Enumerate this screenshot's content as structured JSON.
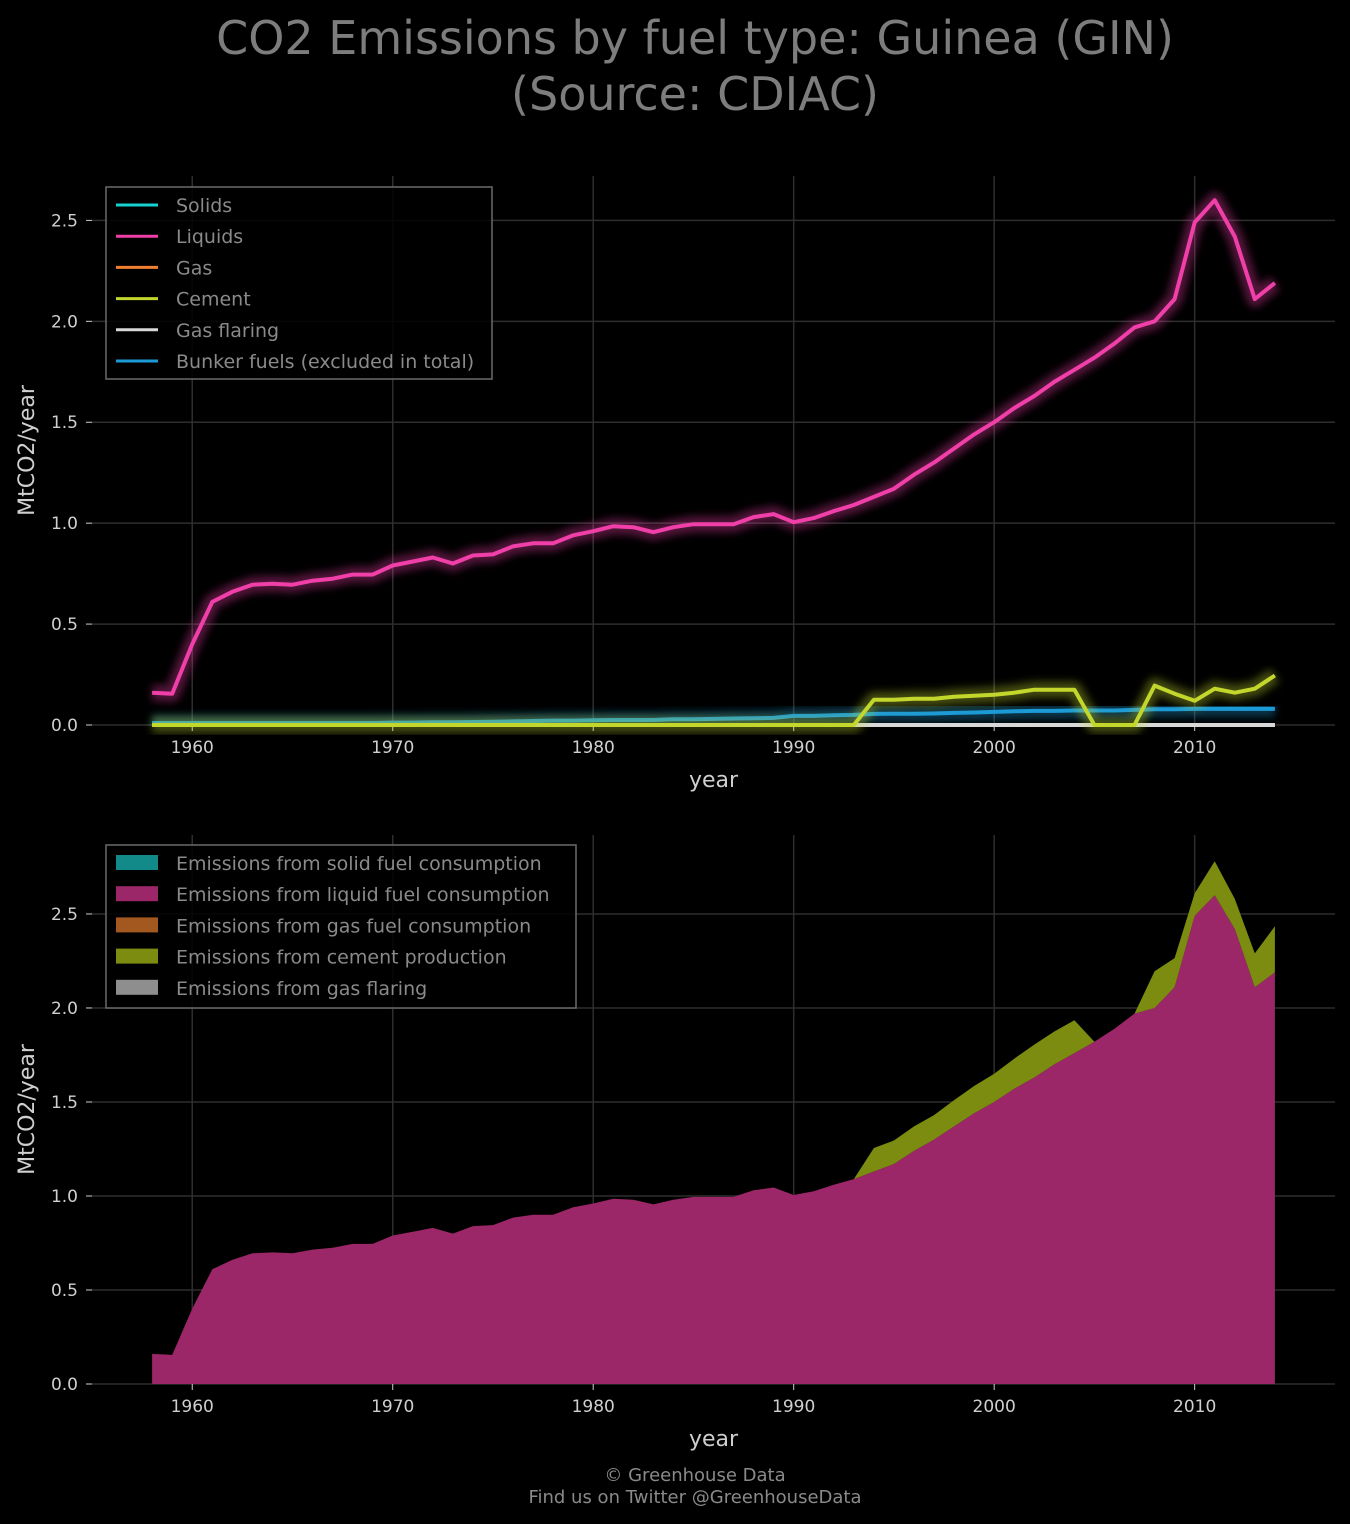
{
  "title": {
    "line1": "CO2 Emissions by fuel type: Guinea (GIN)",
    "line2": "(Source: CDIAC)"
  },
  "footer": {
    "line1": "© Greenhouse Data",
    "line2": "Find us on Twitter @GreenhouseData"
  },
  "chart_data": [
    {
      "type": "line",
      "xlabel": "year",
      "ylabel": "MtCO2/year",
      "xlim": [
        1955,
        2017
      ],
      "ylim": [
        0,
        2.72
      ],
      "xticks": [
        1960,
        1970,
        1980,
        1990,
        2000,
        2010
      ],
      "yticks": [
        0.0,
        0.5,
        1.0,
        1.5,
        2.0,
        2.5
      ],
      "grid": true,
      "legend_position": "top-left",
      "x": [
        1958,
        1959,
        1960,
        1961,
        1962,
        1963,
        1964,
        1965,
        1966,
        1967,
        1968,
        1969,
        1970,
        1971,
        1972,
        1973,
        1974,
        1975,
        1976,
        1977,
        1978,
        1979,
        1980,
        1981,
        1982,
        1983,
        1984,
        1985,
        1986,
        1987,
        1988,
        1989,
        1990,
        1991,
        1992,
        1993,
        1994,
        1995,
        1996,
        1997,
        1998,
        1999,
        2000,
        2001,
        2002,
        2003,
        2004,
        2005,
        2006,
        2007,
        2008,
        2009,
        2010,
        2011,
        2012,
        2013,
        2014
      ],
      "series": [
        {
          "name": "Solids",
          "color": "#17d0d0",
          "values": [
            0,
            0,
            0,
            0,
            0,
            0,
            0,
            0,
            0,
            0,
            0,
            0,
            0,
            0,
            0,
            0,
            0,
            0,
            0,
            0,
            0,
            0,
            0,
            0,
            0,
            0,
            0,
            0,
            0,
            0,
            0,
            0,
            0,
            0,
            0,
            0,
            0,
            0,
            0,
            0,
            0,
            0,
            0,
            0,
            0,
            0,
            0,
            0,
            0,
            0,
            0,
            0,
            0,
            0,
            0,
            0,
            0
          ]
        },
        {
          "name": "Liquids",
          "color": "#f03fa8",
          "values": [
            0.16,
            0.155,
            0.4,
            0.61,
            0.66,
            0.695,
            0.7,
            0.695,
            0.715,
            0.725,
            0.745,
            0.745,
            0.79,
            0.81,
            0.83,
            0.8,
            0.84,
            0.845,
            0.885,
            0.9,
            0.9,
            0.94,
            0.96,
            0.985,
            0.98,
            0.955,
            0.98,
            0.995,
            0.995,
            0.995,
            1.03,
            1.045,
            1.005,
            1.025,
            1.06,
            1.09,
            1.13,
            1.17,
            1.24,
            1.3,
            1.37,
            1.44,
            1.5,
            1.57,
            1.63,
            1.7,
            1.76,
            1.82,
            1.89,
            1.97,
            2.0,
            2.11,
            2.49,
            2.6,
            2.42,
            2.11,
            2.19
          ]
        },
        {
          "name": "Gas",
          "color": "#f07f2f",
          "values": [
            0,
            0,
            0,
            0,
            0,
            0,
            0,
            0,
            0,
            0,
            0,
            0,
            0,
            0,
            0,
            0,
            0,
            0,
            0,
            0,
            0,
            0,
            0,
            0,
            0,
            0,
            0,
            0,
            0,
            0,
            0,
            0,
            0,
            0,
            0,
            0,
            0,
            0,
            0,
            0,
            0,
            0,
            0,
            0,
            0,
            0,
            0,
            0,
            0,
            0,
            0,
            0,
            0,
            0,
            0,
            0,
            0
          ]
        },
        {
          "name": "Cement",
          "color": "#c2d62c",
          "values": [
            0,
            0,
            0,
            0,
            0,
            0,
            0,
            0,
            0,
            0,
            0,
            0,
            0,
            0,
            0,
            0,
            0,
            0,
            0,
            0,
            0,
            0,
            0,
            0,
            0,
            0,
            0,
            0,
            0,
            0,
            0,
            0,
            0,
            0,
            0,
            0,
            0.125,
            0.125,
            0.13,
            0.13,
            0.14,
            0.145,
            0.15,
            0.16,
            0.175,
            0.175,
            0.175,
            0,
            0,
            0,
            0.195,
            0.155,
            0.12,
            0.18,
            0.16,
            0.18,
            0.245
          ]
        },
        {
          "name": "Gas flaring",
          "color": "#d8d8d8",
          "values": [
            0,
            0,
            0,
            0,
            0,
            0,
            0,
            0,
            0,
            0,
            0,
            0,
            0,
            0,
            0,
            0,
            0,
            0,
            0,
            0,
            0,
            0,
            0,
            0,
            0,
            0,
            0,
            0,
            0,
            0,
            0,
            0,
            0,
            0,
            0,
            0,
            0,
            0,
            0,
            0,
            0,
            0,
            0,
            0,
            0,
            0,
            0,
            0,
            0,
            0,
            0,
            0,
            0,
            0,
            0,
            0,
            0
          ]
        },
        {
          "name": "Bunker fuels (excluded in total)",
          "color": "#1c9ad6",
          "values": [
            0.01,
            0.01,
            0.01,
            0.01,
            0.01,
            0.01,
            0.01,
            0.01,
            0.01,
            0.01,
            0.01,
            0.01,
            0.012,
            0.012,
            0.014,
            0.014,
            0.015,
            0.016,
            0.018,
            0.02,
            0.022,
            0.022,
            0.024,
            0.025,
            0.025,
            0.025,
            0.028,
            0.028,
            0.03,
            0.032,
            0.033,
            0.035,
            0.045,
            0.045,
            0.048,
            0.05,
            0.055,
            0.056,
            0.056,
            0.057,
            0.06,
            0.062,
            0.065,
            0.068,
            0.07,
            0.07,
            0.072,
            0.072,
            0.072,
            0.075,
            0.078,
            0.078,
            0.08,
            0.08,
            0.08,
            0.08,
            0.08
          ]
        }
      ]
    },
    {
      "type": "area",
      "stacked": true,
      "xlabel": "year",
      "ylabel": "MtCO2/year",
      "xlim": [
        1955,
        2017
      ],
      "ylim": [
        0,
        2.92
      ],
      "xticks": [
        1960,
        1970,
        1980,
        1990,
        2000,
        2010
      ],
      "yticks": [
        0.0,
        0.5,
        1.0,
        1.5,
        2.0,
        2.5
      ],
      "grid": true,
      "legend_position": "top-left",
      "x": [
        1958,
        1959,
        1960,
        1961,
        1962,
        1963,
        1964,
        1965,
        1966,
        1967,
        1968,
        1969,
        1970,
        1971,
        1972,
        1973,
        1974,
        1975,
        1976,
        1977,
        1978,
        1979,
        1980,
        1981,
        1982,
        1983,
        1984,
        1985,
        1986,
        1987,
        1988,
        1989,
        1990,
        1991,
        1992,
        1993,
        1994,
        1995,
        1996,
        1997,
        1998,
        1999,
        2000,
        2001,
        2002,
        2003,
        2004,
        2005,
        2006,
        2007,
        2008,
        2009,
        2010,
        2011,
        2012,
        2013,
        2014
      ],
      "series": [
        {
          "name": "Emissions from solid fuel consumption",
          "color": "#138a8a",
          "values": [
            0,
            0,
            0,
            0,
            0,
            0,
            0,
            0,
            0,
            0,
            0,
            0,
            0,
            0,
            0,
            0,
            0,
            0,
            0,
            0,
            0,
            0,
            0,
            0,
            0,
            0,
            0,
            0,
            0,
            0,
            0,
            0,
            0,
            0,
            0,
            0,
            0,
            0,
            0,
            0,
            0,
            0,
            0,
            0,
            0,
            0,
            0,
            0,
            0,
            0,
            0,
            0,
            0,
            0,
            0,
            0,
            0
          ]
        },
        {
          "name": "Emissions from liquid fuel consumption",
          "color": "#9c2768",
          "values": [
            0.16,
            0.155,
            0.4,
            0.61,
            0.66,
            0.695,
            0.7,
            0.695,
            0.715,
            0.725,
            0.745,
            0.745,
            0.79,
            0.81,
            0.83,
            0.8,
            0.84,
            0.845,
            0.885,
            0.9,
            0.9,
            0.94,
            0.96,
            0.985,
            0.98,
            0.955,
            0.98,
            0.995,
            0.995,
            0.995,
            1.03,
            1.045,
            1.005,
            1.025,
            1.06,
            1.09,
            1.13,
            1.17,
            1.24,
            1.3,
            1.37,
            1.44,
            1.5,
            1.57,
            1.63,
            1.7,
            1.76,
            1.82,
            1.89,
            1.97,
            2.0,
            2.11,
            2.49,
            2.6,
            2.42,
            2.11,
            2.19
          ]
        },
        {
          "name": "Emissions from gas fuel consumption",
          "color": "#a3581f",
          "values": [
            0,
            0,
            0,
            0,
            0,
            0,
            0,
            0,
            0,
            0,
            0,
            0,
            0,
            0,
            0,
            0,
            0,
            0,
            0,
            0,
            0,
            0,
            0,
            0,
            0,
            0,
            0,
            0,
            0,
            0,
            0,
            0,
            0,
            0,
            0,
            0,
            0,
            0,
            0,
            0,
            0,
            0,
            0,
            0,
            0,
            0,
            0,
            0,
            0,
            0,
            0,
            0,
            0,
            0,
            0,
            0,
            0
          ]
        },
        {
          "name": "Emissions from cement production",
          "color": "#7b8c10",
          "values": [
            0,
            0,
            0,
            0,
            0,
            0,
            0,
            0,
            0,
            0,
            0,
            0,
            0,
            0,
            0,
            0,
            0,
            0,
            0,
            0,
            0,
            0,
            0,
            0,
            0,
            0,
            0,
            0,
            0,
            0,
            0,
            0,
            0,
            0,
            0,
            0,
            0.125,
            0.125,
            0.13,
            0.13,
            0.14,
            0.145,
            0.15,
            0.16,
            0.175,
            0.175,
            0.175,
            0,
            0,
            0,
            0.195,
            0.155,
            0.12,
            0.18,
            0.16,
            0.18,
            0.245
          ]
        },
        {
          "name": "Emissions from gas flaring",
          "color": "#8e8e8e",
          "values": [
            0,
            0,
            0,
            0,
            0,
            0,
            0,
            0,
            0,
            0,
            0,
            0,
            0,
            0,
            0,
            0,
            0,
            0,
            0,
            0,
            0,
            0,
            0,
            0,
            0,
            0,
            0,
            0,
            0,
            0,
            0,
            0,
            0,
            0,
            0,
            0,
            0,
            0,
            0,
            0,
            0,
            0,
            0,
            0,
            0,
            0,
            0,
            0,
            0,
            0,
            0,
            0,
            0,
            0,
            0,
            0,
            0
          ]
        }
      ]
    }
  ]
}
